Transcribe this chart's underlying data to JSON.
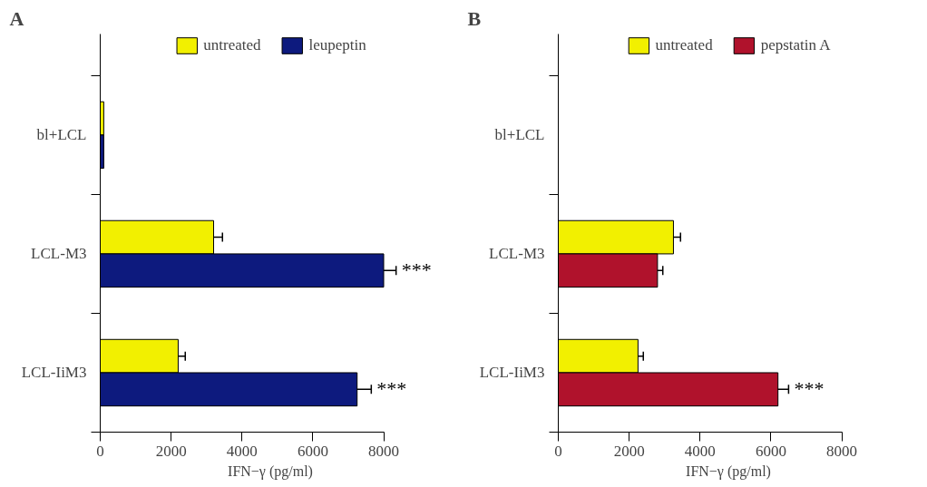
{
  "chart_data": [
    {
      "type": "bar",
      "orientation": "horizontal",
      "title": "A",
      "xlabel": "IFN−γ (pg/ml)",
      "categories": [
        "bl+LCL",
        "LCL-M3",
        "LCL-IiM3"
      ],
      "xlim": [
        0,
        8000
      ],
      "xticks": [
        0,
        2000,
        4000,
        6000,
        8000
      ],
      "grid": false,
      "legend": "top",
      "series": [
        {
          "name": "untreated",
          "color": "#f2f000",
          "values": [
            100,
            3200,
            2200
          ],
          "errors": [
            null,
            250,
            200
          ]
        },
        {
          "name": "leupeptin",
          "color": "#0d1a7e",
          "values": [
            100,
            8000,
            7250
          ],
          "errors": [
            null,
            350,
            400
          ]
        }
      ],
      "annotations": [
        {
          "text": "***",
          "x": 8000,
          "y": "LCL-M3"
        },
        {
          "text": "***",
          "x": 7250,
          "y": "LCL-IiM3"
        }
      ]
    },
    {
      "type": "bar",
      "orientation": "horizontal",
      "title": "B",
      "xlabel": "IFN−γ (pg/ml)",
      "categories": [
        "bl+LCL",
        "LCL-M3",
        "LCL-IiM3"
      ],
      "xlim": [
        0,
        8000
      ],
      "xticks": [
        0,
        2000,
        4000,
        6000,
        8000
      ],
      "grid": false,
      "legend": "top",
      "series": [
        {
          "name": "untreated",
          "color": "#f2f000",
          "values": [
            null,
            3250,
            2250
          ],
          "errors": [
            null,
            200,
            150
          ]
        },
        {
          "name": "pepstatin A",
          "color": "#b0122c",
          "values": [
            null,
            2800,
            6200
          ],
          "errors": [
            null,
            150,
            300
          ]
        }
      ],
      "annotations": [
        {
          "text": "***",
          "x": 6200,
          "y": "LCL-IiM3"
        }
      ]
    }
  ]
}
